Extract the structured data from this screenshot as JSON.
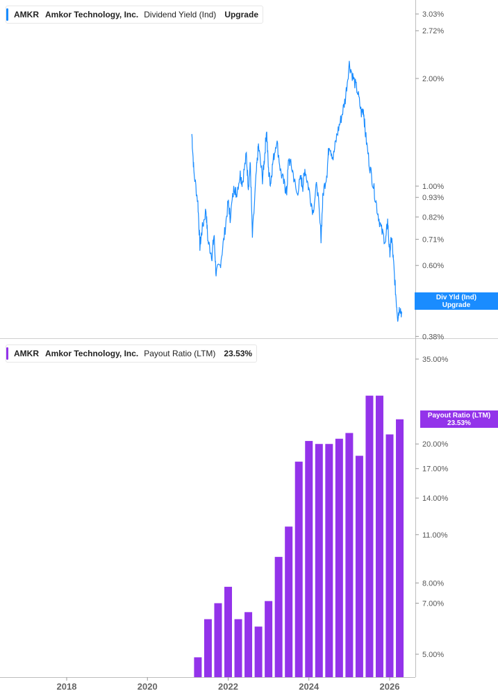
{
  "top_panel": {
    "ticker": "AMKR",
    "company": "Amkor Technology, Inc.",
    "metric": "Dividend Yield (Ind)",
    "value": "Upgrade",
    "flag_line1": "Div Yld (Ind)",
    "flag_line2": "Upgrade",
    "flag_hidden_tick": "0.5",
    "color": "#1a8cff"
  },
  "bottom_panel": {
    "ticker": "AMKR",
    "company": "Amkor Technology, Inc.",
    "metric": "Payout Ratio (LTM)",
    "value": "23.53%",
    "flag_line1": "Payout Ratio (LTM)",
    "flag_line2": "23.53%",
    "flag_hidden_tick": "25.00%",
    "color": "#9333ea"
  },
  "x_axis_labels": [
    "2018",
    "2020",
    "2022",
    "2024",
    "2026"
  ],
  "chart_data": [
    {
      "type": "line",
      "ylim": [
        0.36,
        3.2
      ],
      "y_scale": "log",
      "y_ticks": [
        "3.03%",
        "2.72%",
        "2.00%",
        "1.00%",
        "0.93%",
        "0.82%",
        "0.71%",
        "0.60%",
        "0.38%"
      ],
      "y_tick_values": [
        3.03,
        2.72,
        2.0,
        1.0,
        0.93,
        0.82,
        0.71,
        0.6,
        0.38
      ],
      "series": [
        {
          "x": [
            2021.1,
            2021.15,
            2021.25,
            2021.3,
            2021.35,
            2021.45,
            2021.5,
            2021.6,
            2021.65,
            2021.7,
            2021.8,
            2021.9,
            2022.0,
            2022.05,
            2022.15,
            2022.2,
            2022.3,
            2022.35,
            2022.45,
            2022.5,
            2022.55,
            2022.6,
            2022.7,
            2022.75,
            2022.85,
            2022.9,
            2022.95,
            2023.0,
            2023.05,
            2023.1,
            2023.2,
            2023.3,
            2023.4,
            2023.45,
            2023.5,
            2023.6,
            2023.7,
            2023.8,
            2023.85,
            2023.9,
            2024.0,
            2024.1,
            2024.2,
            2024.3,
            2024.35,
            2024.45,
            2024.5,
            2024.6,
            2024.7,
            2024.8,
            2024.9,
            2025.0,
            2025.1,
            2025.2,
            2025.3,
            2025.35,
            2025.4,
            2025.5,
            2025.6,
            2025.7,
            2025.8,
            2025.9,
            2025.95,
            2026.0,
            2026.05,
            2026.1,
            2026.15,
            2026.2,
            2026.25,
            2026.3
          ],
          "y": [
            1.4,
            1.1,
            0.9,
            0.68,
            0.75,
            0.86,
            0.7,
            0.64,
            0.73,
            0.57,
            0.6,
            0.72,
            0.9,
            0.82,
            1.0,
            0.95,
            1.08,
            1.02,
            1.22,
            1.0,
            1.15,
            0.72,
            1.1,
            1.3,
            1.05,
            1.2,
            1.45,
            1.1,
            1.02,
            1.15,
            1.35,
            1.1,
            1.0,
            0.96,
            1.2,
            1.1,
            0.95,
            1.05,
            1.0,
            1.12,
            0.98,
            0.85,
            1.02,
            0.72,
            0.95,
            1.1,
            1.32,
            1.2,
            1.4,
            1.55,
            1.75,
            2.2,
            2.0,
            1.85,
            1.6,
            1.65,
            1.4,
            1.15,
            1.0,
            0.85,
            0.75,
            0.7,
            0.8,
            0.65,
            0.72,
            0.6,
            0.5,
            0.43,
            0.46,
            0.44
          ]
        }
      ]
    },
    {
      "type": "bar",
      "ylim": [
        4.4,
        38.0
      ],
      "y_scale": "log",
      "y_ticks": [
        "35.00%",
        "20.00%",
        "17.00%",
        "14.00%",
        "11.00%",
        "8.00%",
        "7.00%",
        "5.00%"
      ],
      "y_tick_values": [
        35.0,
        20.0,
        17.0,
        14.0,
        11.0,
        8.0,
        7.0,
        5.0
      ],
      "series": [
        {
          "x": [
            2021.25,
            2021.5,
            2021.75,
            2022.0,
            2022.25,
            2022.5,
            2022.75,
            2023.0,
            2023.25,
            2023.5,
            2023.75,
            2024.0,
            2024.25,
            2024.5,
            2024.75,
            2025.0,
            2025.25,
            2025.5,
            2025.75,
            2026.0,
            2026.25
          ],
          "values": [
            4.9,
            6.3,
            7.0,
            7.8,
            6.3,
            6.6,
            6.0,
            7.1,
            9.5,
            11.6,
            17.8,
            20.4,
            20.0,
            20.0,
            20.7,
            21.5,
            18.5,
            27.5,
            27.5,
            21.3,
            23.53
          ]
        }
      ]
    }
  ]
}
